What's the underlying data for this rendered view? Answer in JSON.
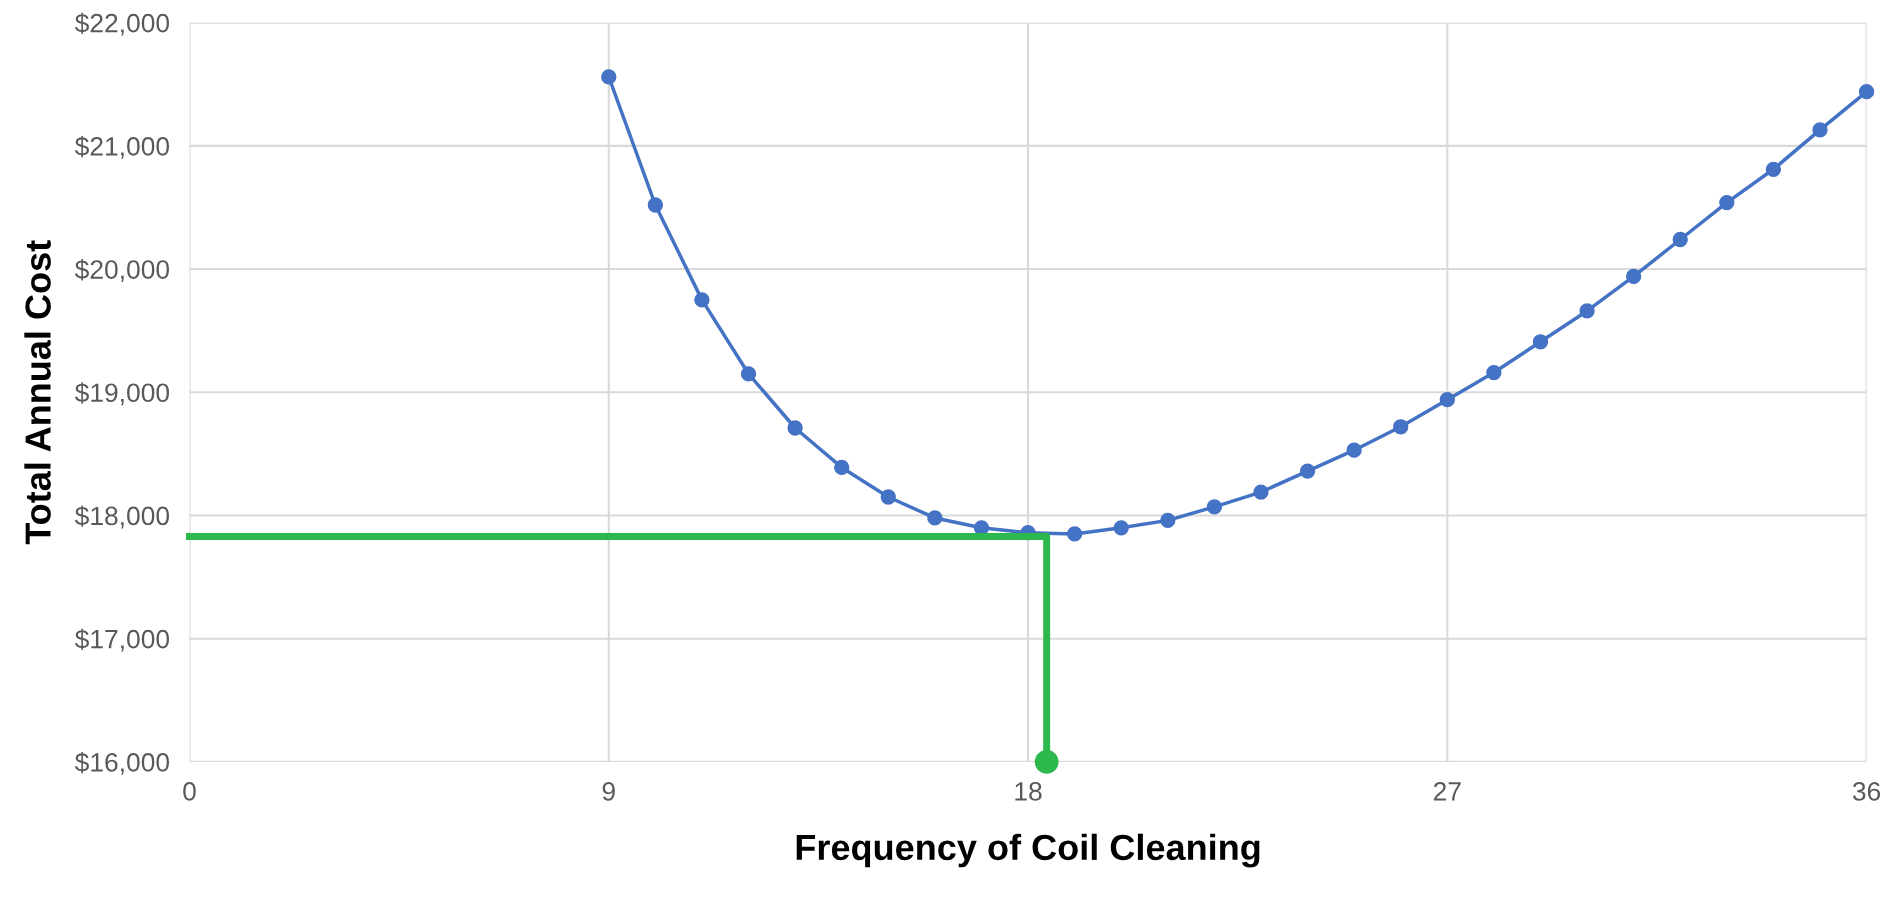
{
  "chart_data": {
    "type": "line",
    "xlabel": "Frequency of Coil Cleaning",
    "ylabel": "Total Annual Cost",
    "series": [
      {
        "color": "#4472c4",
        "marker": "circle",
        "x": [
          9,
          10,
          11,
          12,
          13,
          14,
          15,
          16,
          17,
          18,
          19,
          20,
          21,
          22,
          23,
          24,
          25,
          26,
          27,
          28,
          29,
          30,
          31,
          32,
          33,
          34,
          35,
          36
        ],
        "values": [
          21560,
          20520,
          19750,
          19150,
          18710,
          18390,
          18150,
          17980,
          17900,
          17860,
          17850,
          17900,
          17960,
          18070,
          18190,
          18360,
          18530,
          18720,
          18940,
          19160,
          19410,
          19660,
          19940,
          20240,
          20540,
          20810,
          21130,
          21440
        ]
      },
      {
        "color": "#2db84d",
        "marker": "none",
        "x": [
          0,
          18.4,
          18.4
        ],
        "values": [
          17830,
          17830,
          16000
        ]
      },
      {
        "type": "scatter",
        "color": "#2db84d",
        "marker": "circle",
        "x": [
          18.4
        ],
        "values": [
          16000
        ]
      }
    ],
    "xlim": [
      0,
      36
    ],
    "xticks": [
      0,
      9,
      18,
      27,
      36
    ],
    "ylim": [
      16000,
      22000
    ],
    "yticks": [
      {
        "value": 16000,
        "label": "$16,000"
      },
      {
        "value": 17000,
        "label": "$17,000"
      },
      {
        "value": 18000,
        "label": "$18,000"
      },
      {
        "value": 19000,
        "label": "$19,000"
      },
      {
        "value": 20000,
        "label": "$20,000"
      },
      {
        "value": 21000,
        "label": "$21,000"
      },
      {
        "value": 22000,
        "label": "$22,000"
      }
    ],
    "grid": true,
    "legend": false
  }
}
